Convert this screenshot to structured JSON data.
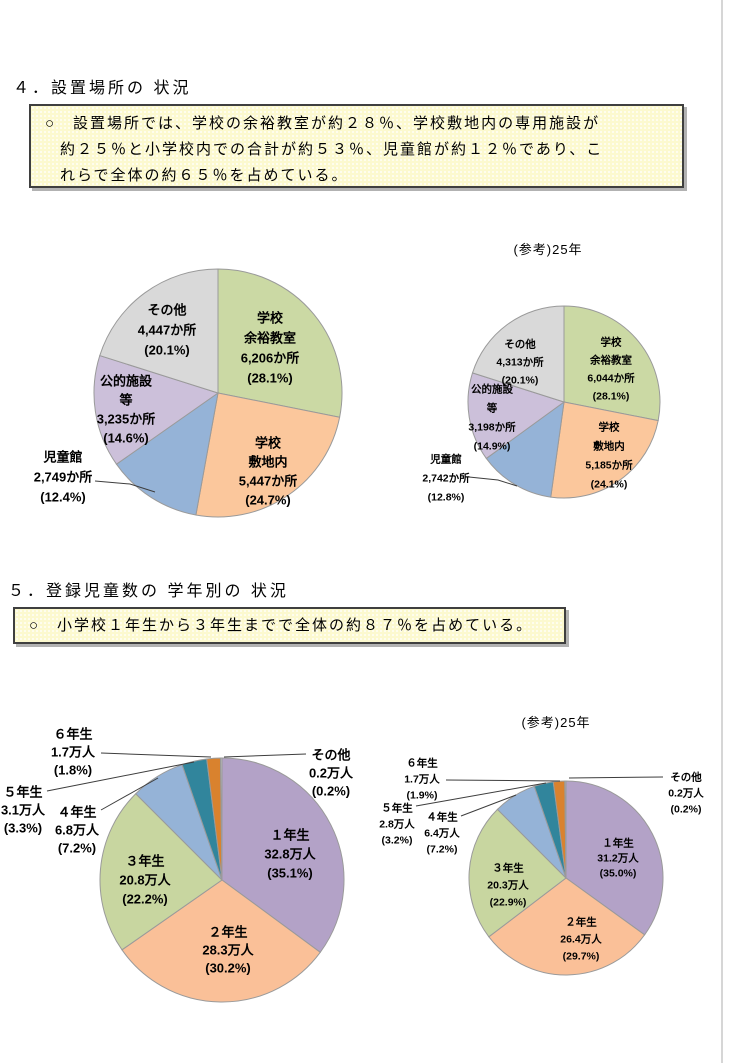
{
  "page": {
    "section4": {
      "title": "４．設置場所の 状況",
      "note_lines": [
        "○　設置場所では、学校の余裕教室が約２８％、学校敷地内の専用施設が",
        "約２５％と小学校内での合計が約５３％、児童館が約１２％であり、こ",
        "れらで全体の約６５％を占めている。"
      ]
    },
    "section5": {
      "title": "５．登録児童数の 学年別の 状況",
      "note_lines": [
        "○　小学校１年生から３年生までで全体の約８７％を占めている。"
      ]
    }
  },
  "chart_data": [
    {
      "id": "pie-location-current",
      "type": "pie",
      "title": "",
      "unit": "か所",
      "slices": [
        {
          "name": "学校余裕教室",
          "lines": [
            "学校",
            "余裕教室",
            "6,206か所",
            "(28.1%)"
          ],
          "value": 6206,
          "pct": 28.1,
          "color": "#cbd9a4"
        },
        {
          "name": "学校敷地内",
          "lines": [
            "学校",
            "敷地内",
            "5,447か所",
            "(24.7%)"
          ],
          "value": 5447,
          "pct": 24.7,
          "color": "#fbc79c"
        },
        {
          "name": "児童館",
          "lines": [
            "児童館",
            "2,749か所",
            "(12.4%)"
          ],
          "value": 2749,
          "pct": 12.4,
          "color": "#95b3d7"
        },
        {
          "name": "公的施設等",
          "lines": [
            "公的施設",
            "等",
            "3,235か所",
            "(14.6%)"
          ],
          "value": 3235,
          "pct": 14.6,
          "color": "#ccc0da"
        },
        {
          "name": "その他",
          "lines": [
            "その他",
            "4,447か所",
            "(20.1%)"
          ],
          "value": 4447,
          "pct": 20.1,
          "color": "#d9d9d9"
        }
      ]
    },
    {
      "id": "pie-location-reference",
      "type": "pie",
      "title": "(参考)25年",
      "unit": "か所",
      "slices": [
        {
          "name": "学校余裕教室",
          "lines": [
            "学校",
            "余裕教室",
            "6,044か所",
            "(28.1%)"
          ],
          "value": 6044,
          "pct": 28.1,
          "color": "#cbd9a4"
        },
        {
          "name": "学校敷地内",
          "lines": [
            "学校",
            "敷地内",
            "5,185か所",
            "(24.1%)"
          ],
          "value": 5185,
          "pct": 24.1,
          "color": "#fbc79c"
        },
        {
          "name": "児童館",
          "lines": [
            "児童館",
            "2,742か所",
            "(12.8%)"
          ],
          "value": 2742,
          "pct": 12.8,
          "color": "#95b3d7"
        },
        {
          "name": "公的施設等",
          "lines": [
            "公的施設",
            "等",
            "3,198か所",
            "(14.9%)"
          ],
          "value": 3198,
          "pct": 14.9,
          "color": "#ccc0da"
        },
        {
          "name": "その他",
          "lines": [
            "その他",
            "4,313か所",
            "(20.1%)"
          ],
          "value": 4313,
          "pct": 20.1,
          "color": "#d9d9d9"
        }
      ]
    },
    {
      "id": "pie-grade-current",
      "type": "pie",
      "title": "",
      "unit": "万人",
      "slices": [
        {
          "name": "１年生",
          "lines": [
            "１年生",
            "32.8万人",
            "(35.1%)"
          ],
          "value": 32.8,
          "pct": 35.1,
          "color": "#b3a2c7"
        },
        {
          "name": "２年生",
          "lines": [
            "２年生",
            "28.3万人",
            "(30.2%)"
          ],
          "value": 28.3,
          "pct": 30.2,
          "color": "#fac098"
        },
        {
          "name": "３年生",
          "lines": [
            "３年生",
            "20.8万人",
            "(22.2%)"
          ],
          "value": 20.8,
          "pct": 22.2,
          "color": "#c8d6a0"
        },
        {
          "name": "４年生",
          "lines": [
            "４年生",
            "6.8万人",
            "(7.2%)"
          ],
          "value": 6.8,
          "pct": 7.2,
          "color": "#95b3d7"
        },
        {
          "name": "５年生",
          "lines": [
            "５年生",
            "3.1万人",
            "(3.3%)"
          ],
          "value": 3.1,
          "pct": 3.3,
          "color": "#31859c"
        },
        {
          "name": "６年生",
          "lines": [
            "６年生",
            "1.7万人",
            "(1.8%)"
          ],
          "value": 1.7,
          "pct": 1.8,
          "color": "#d9822e"
        },
        {
          "name": "その他",
          "lines": [
            "その他",
            "0.2万人",
            "(0.2%)"
          ],
          "value": 0.2,
          "pct": 0.2,
          "color": "#bfbfbf"
        }
      ]
    },
    {
      "id": "pie-grade-reference",
      "type": "pie",
      "title": "(参考)25年",
      "unit": "万人",
      "slices": [
        {
          "name": "１年生",
          "lines": [
            "１年生",
            "31.2万人",
            "(35.0%)"
          ],
          "value": 31.2,
          "pct": 35.0,
          "color": "#b3a2c7"
        },
        {
          "name": "２年生",
          "lines": [
            "２年生",
            "26.4万人",
            "(29.7%)"
          ],
          "value": 26.4,
          "pct": 29.7,
          "color": "#fac098"
        },
        {
          "name": "３年生",
          "lines": [
            "３年生",
            "20.3万人",
            "(22.9%)"
          ],
          "value": 20.3,
          "pct": 22.9,
          "color": "#c8d6a0"
        },
        {
          "name": "４年生",
          "lines": [
            "４年生",
            "6.4万人",
            "(7.2%)"
          ],
          "value": 6.4,
          "pct": 7.2,
          "color": "#95b3d7"
        },
        {
          "name": "５年生",
          "lines": [
            "５年生",
            "2.8万人",
            "(3.2%)"
          ],
          "value": 2.8,
          "pct": 3.2,
          "color": "#31859c"
        },
        {
          "name": "６年生",
          "lines": [
            "６年生",
            "1.7万人",
            "(1.9%)"
          ],
          "value": 1.7,
          "pct": 1.9,
          "color": "#d9822e"
        },
        {
          "name": "その他",
          "lines": [
            "その他",
            "0.2万人",
            "(0.2%)"
          ],
          "value": 0.2,
          "pct": 0.2,
          "color": "#bfbfbf"
        }
      ]
    }
  ]
}
